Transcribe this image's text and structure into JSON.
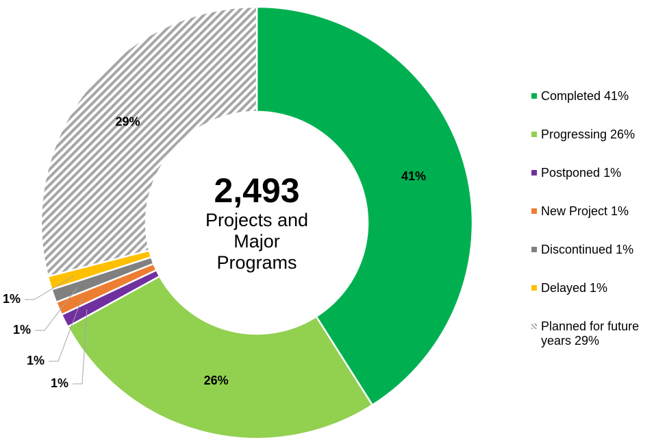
{
  "chart_data": {
    "type": "donut",
    "center_value": "2,493",
    "center_label": "Projects and Major Programs",
    "categories": [
      "Completed 41%",
      "Progressing 26%",
      "Postponed 1%",
      "New Project 1%",
      "Discontinued 1%",
      "Delayed 1%",
      "Planned for future years 29%"
    ],
    "values": [
      41,
      26,
      1,
      1,
      1,
      1,
      29
    ],
    "value_labels": [
      "41%",
      "26%",
      "1%",
      "1%",
      "1%",
      "1%",
      "29%"
    ],
    "colors": [
      "#00b050",
      "#92d050",
      "#7030a0",
      "#ed7d31",
      "#808080",
      "#ffc000",
      "url(#hatch)"
    ],
    "legend": "right"
  }
}
